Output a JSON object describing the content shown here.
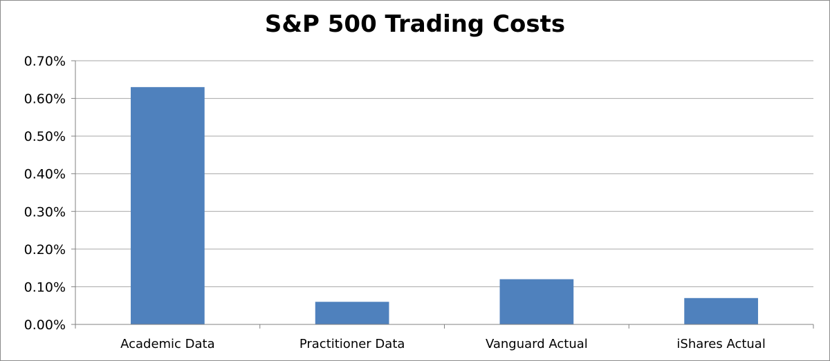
{
  "chart_data": {
    "type": "bar",
    "title": "S&P 500 Trading Costs",
    "xlabel": "",
    "ylabel": "",
    "categories": [
      "Academic Data",
      "Practitioner Data",
      "Vanguard Actual",
      "iShares Actual"
    ],
    "values": [
      0.0063,
      0.0006,
      0.0012,
      0.0007
    ],
    "ylim": [
      0,
      0.007
    ],
    "yticks": [
      0,
      0.001,
      0.002,
      0.003,
      0.004,
      0.005,
      0.006,
      0.007
    ],
    "ytick_labels": [
      "0.00%",
      "0.10%",
      "0.20%",
      "0.30%",
      "0.40%",
      "0.50%",
      "0.60%",
      "0.70%"
    ],
    "grid": true,
    "legend": "none",
    "bar_color": "#4f81bd"
  }
}
